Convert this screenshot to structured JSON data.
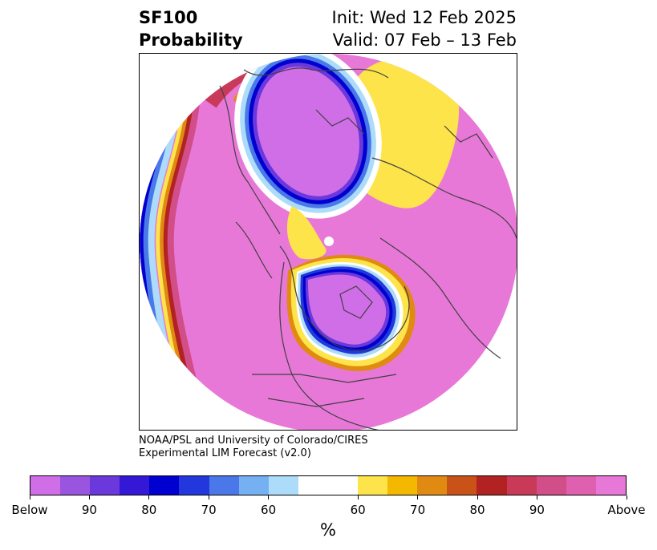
{
  "title": {
    "left_line1": "SF100",
    "left_line2": "Probability",
    "right_line1": "Init: Wed 12 Feb 2025",
    "right_line2": "Valid: 07 Feb – 13 Feb"
  },
  "credit": {
    "line1": "NOAA/PSL and University of Colorado/CIRES",
    "line2": "Experimental LIM Forecast (v2.0)"
  },
  "colorbar": {
    "unit": "%",
    "below_colors": [
      "#d06ee8",
      "#9a55e0",
      "#6b38dc",
      "#3318d6",
      "#0000d0",
      "#2238dc",
      "#4a78e8",
      "#74b0f2",
      "#acdcfa"
    ],
    "neutral_color": "#ffffff",
    "above_colors": [
      "#fde44a",
      "#f5b800",
      "#e08a12",
      "#c85218",
      "#b22222",
      "#c83a58",
      "#d24e88",
      "#e060b0",
      "#e878d8"
    ],
    "labels": [
      "Below",
      "90",
      "80",
      "70",
      "60",
      "60",
      "70",
      "80",
      "90",
      "Above"
    ]
  },
  "map": {
    "background_above_color": "#e878d8",
    "background_below_color": "#d06ee8",
    "coast_color": "#404040"
  }
}
